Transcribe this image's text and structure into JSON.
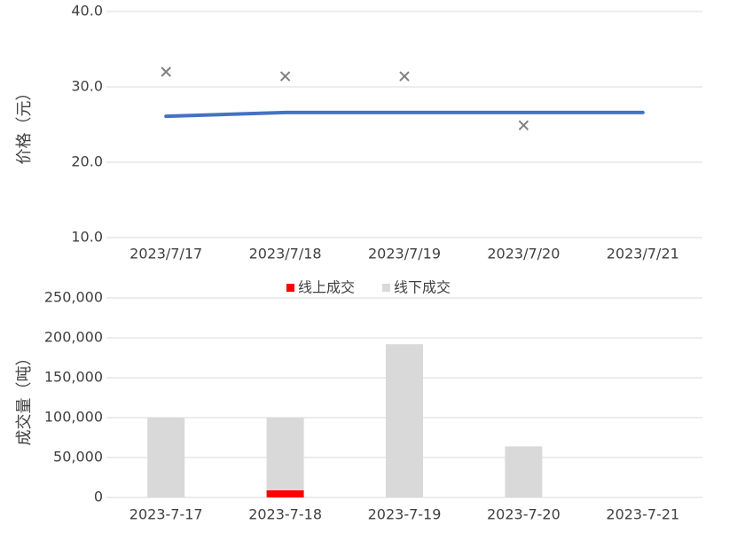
{
  "chart_data": [
    {
      "type": "line",
      "y_label": "价格（元）",
      "categories": [
        "2023/7/17",
        "2023/7/18",
        "2023/7/19",
        "2023/7/20",
        "2023/7/21"
      ],
      "series": [
        {
          "style": "line",
          "color": "#4472c4",
          "values": [
            26.1,
            26.6,
            26.6,
            26.6,
            26.6
          ]
        },
        {
          "style": "cross",
          "color": "#7f7f7f",
          "values": [
            32.0,
            31.4,
            31.4,
            24.9,
            null
          ]
        }
      ],
      "ylim": [
        10,
        40
      ],
      "yticks": [
        {
          "value": 10,
          "label": "10.0"
        },
        {
          "value": 20,
          "label": "20.0"
        },
        {
          "value": 30,
          "label": "30.0"
        },
        {
          "value": 40,
          "label": "40.0"
        }
      ],
      "grid": true
    },
    {
      "type": "stacked_bar",
      "y_label": "成交量（吨）",
      "legend": "top",
      "categories": [
        "2023-7-17",
        "2023-7-18",
        "2023-7-19",
        "2023-7-20",
        "2023-7-21"
      ],
      "series": [
        {
          "name": "线上成交",
          "color": "#ff0000",
          "values": [
            0,
            9000,
            0,
            0,
            0
          ]
        },
        {
          "name": "线下成交",
          "color": "#d9d9d9",
          "values": [
            100000,
            91000,
            192000,
            64000,
            0
          ]
        }
      ],
      "ylim": [
        0,
        250000
      ],
      "yticks": [
        0,
        {
          "value": 50000,
          "label": "50,000"
        },
        {
          "value": 100000,
          "label": "100,000"
        },
        {
          "value": 150000,
          "label": "150,000"
        },
        {
          "value": 200000,
          "label": "200,000"
        },
        {
          "value": 250000,
          "label": "250,000"
        }
      ],
      "grid": true
    }
  ]
}
